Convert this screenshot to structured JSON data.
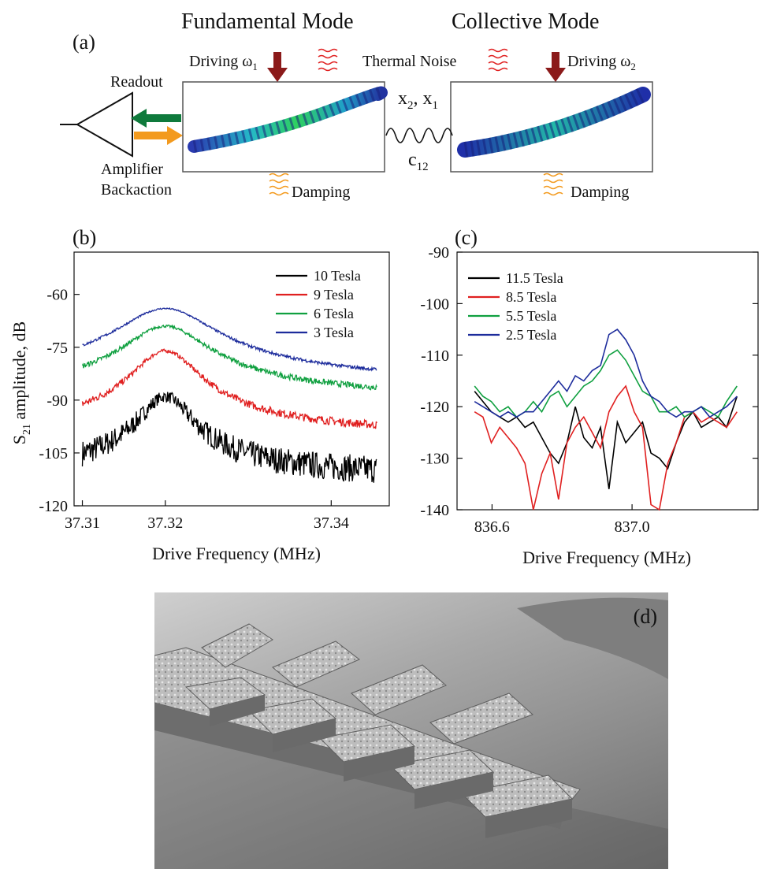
{
  "panel_a": {
    "label": "(a)",
    "title_left": "Fundamental Mode",
    "title_right": "Collective Mode",
    "driving_1": "Driving ω",
    "driving_1_sub": "1",
    "driving_2": "Driving ω",
    "driving_2_sub": "2",
    "thermal_noise": "Thermal Noise",
    "readout": "Readout",
    "amplifier": "Amplifier",
    "backaction": "Backaction",
    "coupling_x": "x",
    "coupling_x_sub2": "2",
    "coupling_sep": ", x",
    "coupling_x_sub1": "1",
    "coupling_c": "c",
    "coupling_c_sub": "12",
    "damping_left": "Damping",
    "damping_right": "Damping",
    "colors": {
      "drive_arrow": "#8b1a1a",
      "readout_arrow": "#0f7a3c",
      "backaction_arrow": "#f39a1e",
      "thermal": "#e02020",
      "damping": "#f39a1e"
    }
  },
  "panel_b": {
    "label": "(b)",
    "ylabel": "S",
    "ylabel_sub": "21",
    "ylabel_rest": " amplitude, dB",
    "xlabel": "Drive Frequency (MHz)",
    "xticks": [
      "37.31",
      "37.32",
      "37.34"
    ],
    "yticks": [
      "-60",
      "-75",
      "-90",
      "-105",
      "-120"
    ]
  },
  "panel_c": {
    "label": "(c)",
    "xlabel": "Drive Frequency (MHz)",
    "xticks": [
      "836.6",
      "837.0"
    ],
    "yticks": [
      "-90",
      "-100",
      "-110",
      "-120",
      "-130",
      "-140"
    ]
  },
  "panel_d": {
    "label": "(d)"
  },
  "chart_data": [
    {
      "type": "line",
      "xlabel": "Drive Frequency (MHz)",
      "ylabel": "S21 amplitude, dB",
      "xlim": [
        37.309,
        37.347
      ],
      "ylim": [
        -120,
        -48
      ],
      "legend": "top-right",
      "series": [
        {
          "name": "10 Tesla",
          "color": "#000000",
          "center": 37.32,
          "peak": -89,
          "base": -113,
          "width": 0.0035,
          "noise": 4.0
        },
        {
          "name": "9 Tesla",
          "color": "#e02020",
          "center": 37.32,
          "peak": -76,
          "base": -101.5,
          "width": 0.0045,
          "noise": 1.2
        },
        {
          "name": "6 Tesla",
          "color": "#10a040",
          "center": 37.32,
          "peak": -69,
          "base": -91,
          "width": 0.0055,
          "noise": 0.9
        },
        {
          "name": "3 Tesla",
          "color": "#1d2c9c",
          "center": 37.32,
          "peak": -64,
          "base": -87,
          "width": 0.0065,
          "noise": 0.5
        }
      ]
    },
    {
      "type": "line",
      "xlabel": "Drive Frequency (MHz)",
      "ylabel": "",
      "xlim": [
        836.5,
        837.36
      ],
      "ylim": [
        -140,
        -90
      ],
      "legend": "top-left",
      "x": [
        836.55,
        836.574,
        836.598,
        836.622,
        836.646,
        836.67,
        836.694,
        836.718,
        836.742,
        836.766,
        836.79,
        836.814,
        836.838,
        836.862,
        836.886,
        836.91,
        836.934,
        836.958,
        836.982,
        837.006,
        837.03,
        837.054,
        837.078,
        837.102,
        837.126,
        837.15,
        837.174,
        837.198,
        837.222,
        837.246,
        837.27,
        837.3
      ],
      "series": [
        {
          "name": "11.5 Tesla",
          "color": "#000000",
          "y": [
            -117,
            -119,
            -121,
            -122,
            -123,
            -122,
            -124,
            -123,
            -126,
            -129,
            -131,
            -127,
            -120,
            -126,
            -128,
            -124,
            -136,
            -123,
            -127,
            -125,
            -123,
            -129,
            -130,
            -132,
            -127,
            -123,
            -121,
            -124,
            -123,
            -122,
            -124,
            -118
          ]
        },
        {
          "name": "8.5 Tesla",
          "color": "#e02020",
          "y": [
            -121,
            -122,
            -127,
            -124,
            -126,
            -128,
            -131,
            -140,
            -133,
            -129,
            -138,
            -127,
            -124,
            -122,
            -125,
            -128,
            -121,
            -118,
            -116,
            -121,
            -124,
            -139,
            -140,
            -131,
            -127,
            -122,
            -121,
            -123,
            -122,
            -123,
            -124,
            -121
          ]
        },
        {
          "name": "5.5 Tesla",
          "color": "#10a040",
          "y": [
            -116,
            -118,
            -119,
            -121,
            -120,
            -122,
            -121,
            -119,
            -121,
            -118,
            -117,
            -120,
            -118,
            -116,
            -115,
            -113,
            -110,
            -109,
            -111,
            -114,
            -117,
            -118,
            -121,
            -121,
            -120,
            -122,
            -121,
            -120,
            -121,
            -122,
            -119,
            -116
          ]
        },
        {
          "name": "2.5 Tesla",
          "color": "#1d2c9c",
          "y": [
            -119,
            -120,
            -121,
            -122,
            -121,
            -122,
            -121,
            -121,
            -119,
            -117,
            -115,
            -117,
            -114,
            -115,
            -113,
            -112,
            -106,
            -105,
            -107,
            -110,
            -115,
            -118,
            -119,
            -121,
            -122,
            -121,
            -121,
            -120,
            -122,
            -121,
            -120,
            -118
          ]
        }
      ]
    }
  ]
}
